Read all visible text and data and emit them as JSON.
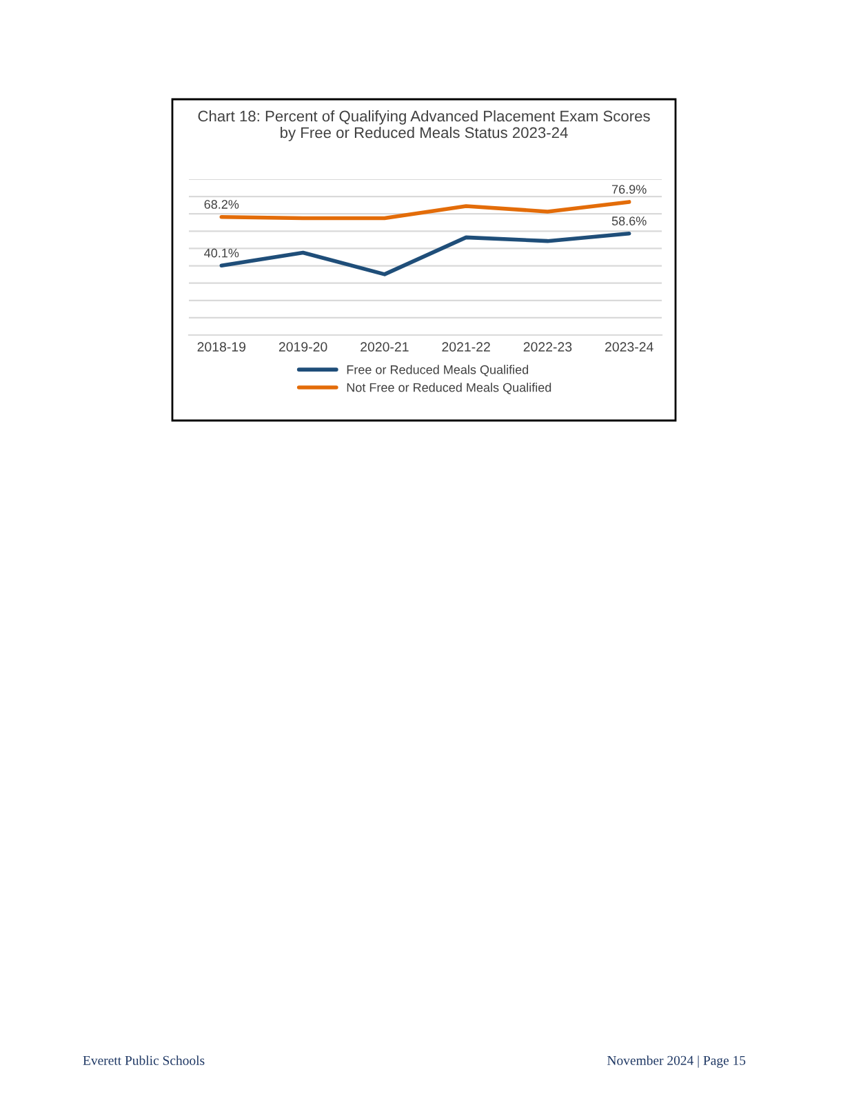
{
  "chart_data": {
    "type": "line",
    "title": "Chart 18: Percent of Qualifying Advanced Placement Exam Scores\nby Free or Reduced Meals Status 2023-24",
    "categories": [
      "2018-19",
      "2019-20",
      "2020-21",
      "2021-22",
      "2022-23",
      "2023-24"
    ],
    "series": [
      {
        "name": "Free or Reduced Meals Qualified",
        "color": "#1f4e79",
        "values": [
          40.1,
          47.6,
          35.1,
          56.4,
          54.3,
          58.6
        ],
        "value_labels": [
          "40.1%",
          null,
          null,
          null,
          null,
          "58.6%"
        ]
      },
      {
        "name": "Not Free or Reduced Meals Qualified",
        "color": "#e36c09",
        "values": [
          68.2,
          67.5,
          67.5,
          74.5,
          71.3,
          76.9
        ],
        "value_labels": [
          "68.2%",
          null,
          null,
          null,
          null,
          "76.9%"
        ]
      }
    ],
    "ylim": [
      0,
      90
    ],
    "yticks": [
      {
        "value": 0,
        "label": null
      },
      {
        "value": 10,
        "label": null
      },
      {
        "value": 20,
        "label": null
      },
      {
        "value": 30,
        "label": null
      },
      {
        "value": 40,
        "label": null
      },
      {
        "value": 50,
        "label": null
      },
      {
        "value": 60,
        "label": null
      },
      {
        "value": 70,
        "label": null
      },
      {
        "value": 80,
        "label": null
      },
      {
        "value": 90,
        "label": null
      }
    ],
    "grid": "y",
    "legend": "bottom",
    "marker": "none",
    "line_style": "solid",
    "annotations": [
      "Everett Public Schools",
      "November 2024 | Page 15"
    ]
  }
}
